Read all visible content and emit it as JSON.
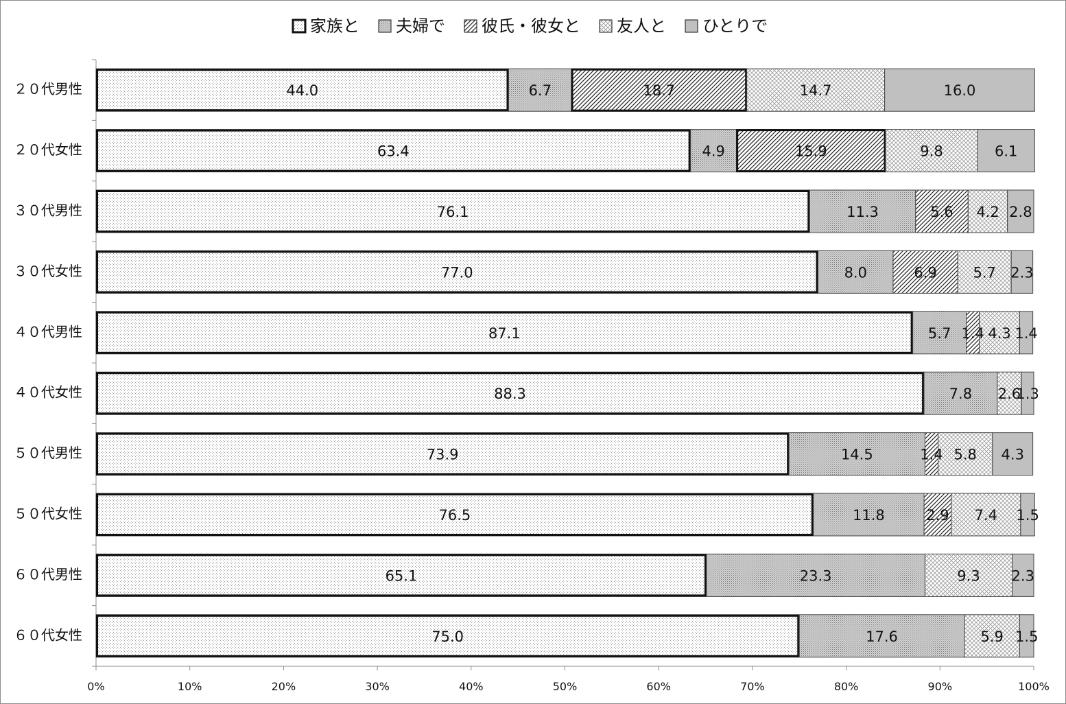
{
  "chart_data": {
    "type": "bar",
    "orientation": "horizontal",
    "stacked": "100%",
    "xlim": [
      0,
      100
    ],
    "xticks": [
      "0%",
      "10%",
      "20%",
      "30%",
      "40%",
      "50%",
      "60%",
      "70%",
      "80%",
      "90%",
      "100%"
    ],
    "legend_position": "top",
    "grid": false,
    "categories": [
      "２０代男性",
      "２０代女性",
      "３０代男性",
      "３０代女性",
      "４０代男性",
      "４０代女性",
      "５０代男性",
      "５０代女性",
      "６０代男性",
      "６０代女性"
    ],
    "series": [
      {
        "name": "家族と",
        "pattern": "dots-fine",
        "color": "#ffffff",
        "values": [
          44.0,
          63.4,
          76.1,
          77.0,
          87.1,
          88.3,
          73.9,
          76.5,
          65.1,
          75.0
        ],
        "labels": [
          "44.0",
          "63.4",
          "76.1",
          "77.0",
          "87.1",
          "88.3",
          "73.9",
          "76.5",
          "65.1",
          "75.0"
        ]
      },
      {
        "name": "夫婦で",
        "pattern": "dots-dense",
        "color": "#c8c8c8",
        "values": [
          6.7,
          4.9,
          11.3,
          8.0,
          5.7,
          7.8,
          14.5,
          11.8,
          23.3,
          17.6
        ],
        "labels": [
          "6.7",
          "4.9",
          "11.3",
          "8.0",
          "5.7",
          "7.8",
          "14.5",
          "11.8",
          "23.3",
          "17.6"
        ]
      },
      {
        "name": "彼氏・彼女と",
        "pattern": "diagonal",
        "color": "#ffffff",
        "values": [
          18.7,
          15.9,
          5.6,
          6.9,
          1.4,
          0,
          1.4,
          2.9,
          0,
          0
        ],
        "labels": [
          "18.7",
          "15.9",
          "5.6",
          "6.9",
          "1.4",
          "",
          "1.4",
          "2.9",
          "",
          ""
        ]
      },
      {
        "name": "友人と",
        "pattern": "crosshatch",
        "color": "#ffffff",
        "values": [
          14.7,
          9.8,
          4.2,
          5.7,
          4.3,
          2.6,
          5.8,
          7.4,
          9.3,
          5.9
        ],
        "labels": [
          "14.7",
          "9.8",
          "4.2",
          "5.7",
          "4.3",
          "2.6",
          "5.8",
          "7.4",
          "9.3",
          "5.9"
        ]
      },
      {
        "name": "ひとりで",
        "pattern": "solid",
        "color": "#c0c0c0",
        "values": [
          16.0,
          6.1,
          2.8,
          2.3,
          1.4,
          1.3,
          4.3,
          1.5,
          2.3,
          1.5
        ],
        "labels": [
          "16.0",
          "6.1",
          "2.8",
          "2.3",
          "1.4",
          "1.3",
          "4.3",
          "1.5",
          "2.3",
          "1.5"
        ]
      }
    ]
  }
}
